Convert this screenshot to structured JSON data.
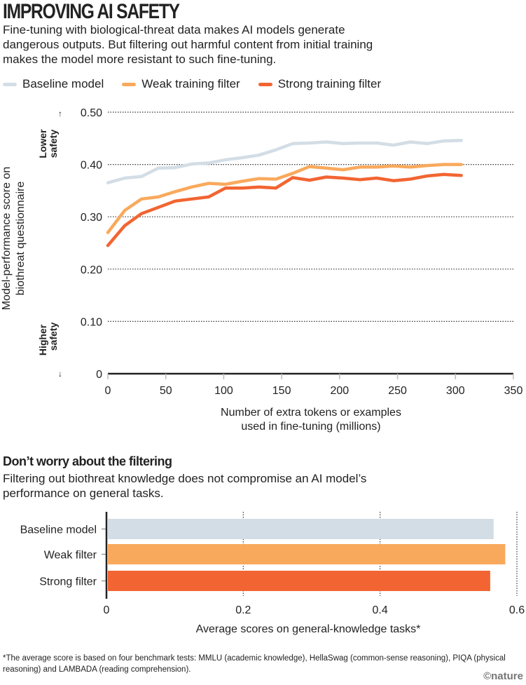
{
  "header": {
    "title": "IMPROVING AI SAFETY",
    "subtitle": "Fine-tuning with biological-threat data makes AI models generate dangerous outputs. But filtering out harmful content from initial training makes the model more resistant to such fine-tuning."
  },
  "legend": [
    {
      "label": "Baseline model",
      "color": "#d3dde6"
    },
    {
      "label": "Weak training filter",
      "color": "#f9a95c"
    },
    {
      "label": "Strong training filter",
      "color": "#f26532"
    }
  ],
  "section2": {
    "title": "Don’t worry about the filtering",
    "text": "Filtering out biothreat knowledge does not compromise an AI model’s performance on general tasks."
  },
  "footnote": "*The average score is based on four benchmark tests: MMLU (academic knowledge), HellaSwag (common-sense reasoning), PIQA (physical reasoning) and LAMBADA (reading comprehension).",
  "credit": "©nature",
  "chart_data": [
    {
      "type": "line",
      "title": "",
      "xlabel": "Number of extra tokens or examples used in fine-tuning (millions)",
      "ylabel": "Model-performance score on biothreat questionnaire",
      "annotations": {
        "top": "Lower safety",
        "bottom": "Higher safety"
      },
      "xlim": [
        0,
        350
      ],
      "ylim": [
        0,
        0.5
      ],
      "xticks": [
        "0",
        "50",
        "100",
        "150",
        "200",
        "250",
        "300",
        "350"
      ],
      "xtick_values": [
        0,
        50,
        100,
        150,
        200,
        250,
        300,
        350
      ],
      "yticks": [
        "0",
        "0.10",
        "0.20",
        "0.30",
        "0.40",
        "0.50"
      ],
      "ytick_values": [
        0,
        0.1,
        0.2,
        0.3,
        0.4,
        0.5
      ],
      "grid": true,
      "legend_position": "top",
      "x": [
        0,
        14.5,
        29,
        43.5,
        58,
        72.5,
        87,
        101.5,
        116,
        130.5,
        145,
        159.5,
        174,
        188.5,
        203,
        217.5,
        232,
        246.5,
        261,
        275.5,
        290,
        305
      ],
      "series": [
        {
          "name": "Baseline model",
          "color": "#d3dde6",
          "values": [
            0.365,
            0.374,
            0.377,
            0.393,
            0.394,
            0.401,
            0.403,
            0.409,
            0.413,
            0.418,
            0.428,
            0.44,
            0.441,
            0.443,
            0.44,
            0.441,
            0.441,
            0.437,
            0.443,
            0.44,
            0.445,
            0.446
          ]
        },
        {
          "name": "Weak training filter",
          "color": "#f9a95c",
          "values": [
            0.27,
            0.312,
            0.334,
            0.338,
            0.348,
            0.357,
            0.364,
            0.362,
            0.368,
            0.373,
            0.372,
            0.383,
            0.396,
            0.393,
            0.39,
            0.395,
            0.395,
            0.397,
            0.395,
            0.398,
            0.4,
            0.4
          ]
        },
        {
          "name": "Strong training filter",
          "color": "#f26532",
          "values": [
            0.245,
            0.283,
            0.306,
            0.318,
            0.33,
            0.334,
            0.338,
            0.355,
            0.355,
            0.357,
            0.355,
            0.375,
            0.37,
            0.376,
            0.374,
            0.371,
            0.374,
            0.369,
            0.372,
            0.378,
            0.381,
            0.379
          ]
        }
      ]
    },
    {
      "type": "bar",
      "orientation": "horizontal",
      "title": "Don’t worry about the filtering",
      "xlabel": "Average scores on general-knowledge tasks*",
      "ylabel": "",
      "xlim": [
        0,
        0.6
      ],
      "xticks": [
        "0",
        "0.2",
        "0.4",
        "0.6"
      ],
      "xtick_values": [
        0,
        0.2,
        0.4,
        0.6
      ],
      "categories": [
        "Baseline model",
        "Weak filter",
        "Strong filter"
      ],
      "values": [
        0.566,
        0.583,
        0.561
      ],
      "colors": [
        "#d3dde6",
        "#f9a95c",
        "#f26532"
      ],
      "grid": true
    }
  ]
}
